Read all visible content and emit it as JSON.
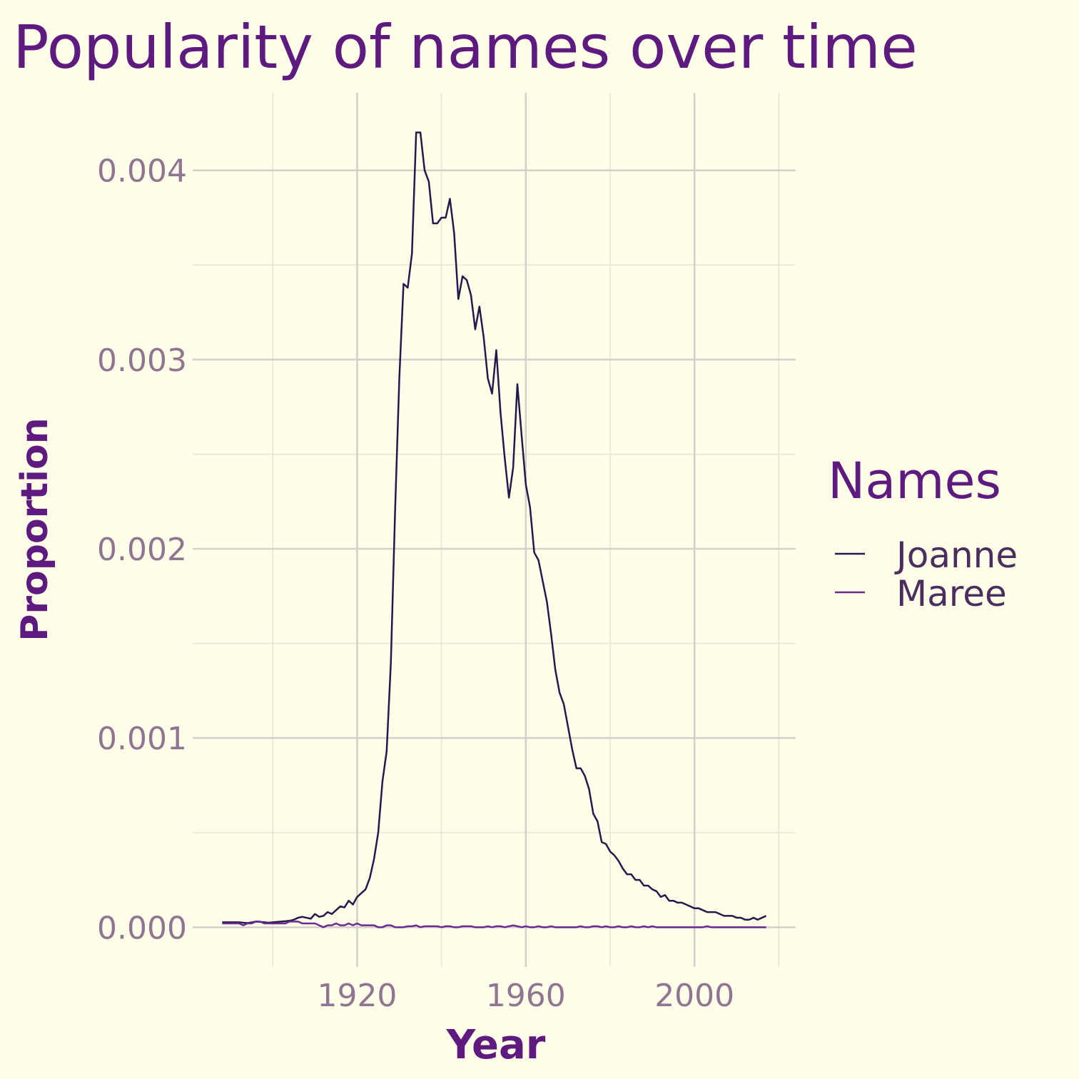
{
  "chart_data": {
    "type": "line",
    "title": "Popularity of names over time",
    "x_label": "Year",
    "y_label": "Proportion",
    "legend_title": "Names",
    "legend": "right",
    "grid": true,
    "xlim": [
      1881,
      2024
    ],
    "xticks": [
      1920,
      1960,
      2000
    ],
    "xminor": [
      1900,
      1940,
      1980,
      2020
    ],
    "ylim": [
      -0.00021,
      0.00441
    ],
    "yticks": [
      {
        "value": 0,
        "label": "0.000"
      },
      0.001,
      0.002,
      0.003,
      0.004
    ],
    "yminor": [
      0.0005,
      0.0015,
      0.0025,
      0.0035
    ],
    "x": [
      1888,
      1889,
      1890,
      1891,
      1892,
      1893,
      1894,
      1895,
      1896,
      1897,
      1898,
      1899,
      1900,
      1901,
      1902,
      1903,
      1904,
      1905,
      1906,
      1907,
      1908,
      1909,
      1910,
      1911,
      1912,
      1913,
      1914,
      1915,
      1916,
      1917,
      1918,
      1919,
      1920,
      1921,
      1922,
      1923,
      1924,
      1925,
      1926,
      1927,
      1928,
      1929,
      1930,
      1931,
      1932,
      1933,
      1934,
      1935,
      1936,
      1937,
      1938,
      1939,
      1940,
      1941,
      1942,
      1943,
      1944,
      1945,
      1946,
      1947,
      1948,
      1949,
      1950,
      1951,
      1952,
      1953,
      1954,
      1955,
      1956,
      1957,
      1958,
      1959,
      1960,
      1961,
      1962,
      1963,
      1964,
      1965,
      1966,
      1967,
      1968,
      1969,
      1970,
      1971,
      1972,
      1973,
      1974,
      1975,
      1976,
      1977,
      1978,
      1979,
      1980,
      1981,
      1982,
      1983,
      1984,
      1985,
      1986,
      1987,
      1988,
      1989,
      1990,
      1991,
      1992,
      1993,
      1994,
      1995,
      1996,
      1997,
      1998,
      1999,
      2000,
      2001,
      2002,
      2003,
      2004,
      2005,
      2006,
      2007,
      2008,
      2009,
      2010,
      2011,
      2012,
      2013,
      2014,
      2015,
      2016,
      2017
    ],
    "series": [
      {
        "name": "Joanne",
        "color": "#22194d",
        "values": [
          2.6e-05,
          2.6e-05,
          2.6e-05,
          2.6e-05,
          2.6e-05,
          2.4e-05,
          2.2e-05,
          2.6e-05,
          3e-05,
          2.8e-05,
          2.6e-05,
          2.4e-05,
          2.6e-05,
          2.8e-05,
          3e-05,
          3.2e-05,
          3.4e-05,
          4e-05,
          5e-05,
          5.5e-05,
          5e-05,
          4.5e-05,
          7e-05,
          5.5e-05,
          6e-05,
          8e-05,
          7e-05,
          9e-05,
          0.00011,
          0.000105,
          0.00014,
          0.00012,
          0.00016,
          0.00018,
          0.0002,
          0.00026,
          0.00036,
          0.0005,
          0.00077,
          0.00093,
          0.0014,
          0.0022,
          0.0029,
          0.0034,
          0.00338,
          0.00356,
          0.0042,
          0.0042,
          0.004,
          0.00394,
          0.00372,
          0.00372,
          0.00375,
          0.00375,
          0.00385,
          0.00367,
          0.00332,
          0.00344,
          0.00342,
          0.00334,
          0.00316,
          0.00328,
          0.00312,
          0.0029,
          0.00282,
          0.00305,
          0.00272,
          0.00248,
          0.00227,
          0.00243,
          0.00287,
          0.0026,
          0.00234,
          0.00222,
          0.00198,
          0.00194,
          0.00183,
          0.00172,
          0.00155,
          0.00136,
          0.00124,
          0.00118,
          0.00106,
          0.00094,
          0.00084,
          0.00084,
          0.0008,
          0.00073,
          0.0006,
          0.00056,
          0.00045,
          0.00044,
          0.0004,
          0.00038,
          0.00035,
          0.00031,
          0.00028,
          0.00028,
          0.00025,
          0.00025,
          0.00022,
          0.00022,
          0.0002,
          0.00019,
          0.00016,
          0.00017,
          0.00014,
          0.00014,
          0.00013,
          0.00013,
          0.00012,
          0.00011,
          0.0001,
          0.0001,
          9e-05,
          8e-05,
          8e-05,
          8e-05,
          7e-05,
          6e-05,
          6e-05,
          6e-05,
          5e-05,
          5e-05,
          4e-05,
          4e-05,
          5e-05,
          4e-05,
          5e-05,
          6e-05
        ]
      },
      {
        "name": "Maree",
        "color": "#6b2a8f",
        "values": [
          2e-05,
          2e-05,
          2e-05,
          2e-05,
          2e-05,
          1e-05,
          2e-05,
          2e-05,
          3e-05,
          3e-05,
          2e-05,
          2e-05,
          2e-05,
          2e-05,
          2e-05,
          2e-05,
          3e-05,
          3e-05,
          3e-05,
          2e-05,
          2e-05,
          2e-05,
          2e-05,
          1e-05,
          0,
          1e-05,
          1e-05,
          2e-05,
          1e-05,
          1e-05,
          2e-05,
          1e-05,
          2e-05,
          1e-05,
          1e-05,
          1e-05,
          1e-05,
          0,
          0,
          1e-05,
          1e-05,
          0,
          0,
          0,
          5e-06,
          5e-06,
          1e-05,
          0,
          5e-06,
          5e-06,
          5e-06,
          5e-06,
          0,
          5e-06,
          5e-06,
          0,
          0,
          5e-06,
          5e-06,
          5e-06,
          0,
          0,
          0,
          5e-06,
          0,
          5e-06,
          5e-06,
          0,
          5e-06,
          1e-05,
          5e-06,
          0,
          5e-06,
          0,
          0,
          5e-06,
          0,
          0,
          5e-06,
          0,
          0,
          0,
          0,
          0,
          0,
          5e-06,
          0,
          0,
          5e-06,
          5e-06,
          0,
          5e-06,
          0,
          0,
          5e-06,
          0,
          0,
          5e-06,
          0,
          0,
          5e-06,
          0,
          5e-06,
          0,
          0,
          0,
          0,
          0,
          0,
          0,
          0,
          0,
          0,
          0,
          0,
          5e-06,
          0,
          0,
          0,
          0,
          0,
          0,
          0,
          0,
          0,
          0,
          0,
          0,
          0,
          0
        ]
      }
    ]
  }
}
